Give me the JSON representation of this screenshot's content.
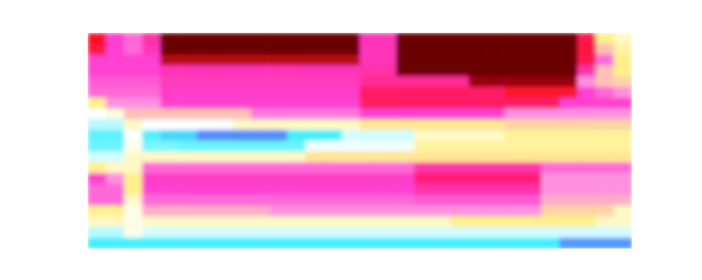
{
  "chart_data": {
    "type": "heatmap",
    "tick_labels": false,
    "xlim": [
      0,
      30
    ],
    "ylim": [
      0,
      20
    ],
    "zlim": [
      0,
      1
    ],
    "z": [
      [
        0.75,
        0.55,
        0.5,
        0.6,
        0.85,
        0.85,
        0.85,
        0.85,
        0.85,
        0.85,
        0.85,
        0.85,
        0.85,
        0.85,
        0.85,
        0.58,
        0.58,
        0.85,
        0.85,
        0.85,
        0.85,
        0.85,
        0.85,
        0.85,
        0.85,
        0.85,
        0.85,
        0.7,
        0.35,
        0.3
      ],
      [
        0.72,
        0.55,
        0.5,
        0.58,
        0.85,
        0.85,
        0.85,
        0.85,
        0.85,
        0.85,
        0.85,
        0.85,
        0.85,
        0.85,
        0.85,
        0.58,
        0.58,
        0.85,
        0.85,
        0.85,
        0.85,
        0.85,
        0.85,
        0.85,
        0.85,
        0.85,
        0.85,
        0.72,
        0.4,
        0.33
      ],
      [
        0.55,
        0.55,
        0.55,
        0.55,
        0.8,
        0.8,
        0.8,
        0.8,
        0.8,
        0.8,
        0.8,
        0.8,
        0.8,
        0.8,
        0.8,
        0.58,
        0.58,
        0.85,
        0.85,
        0.85,
        0.85,
        0.85,
        0.85,
        0.85,
        0.85,
        0.85,
        0.85,
        0.7,
        0.5,
        0.35
      ],
      [
        0.55,
        0.55,
        0.55,
        0.55,
        0.58,
        0.58,
        0.58,
        0.58,
        0.58,
        0.58,
        0.58,
        0.58,
        0.58,
        0.58,
        0.58,
        0.6,
        0.6,
        0.85,
        0.85,
        0.85,
        0.85,
        0.85,
        0.85,
        0.85,
        0.85,
        0.85,
        0.85,
        0.6,
        0.4,
        0.35
      ],
      [
        0.52,
        0.52,
        0.52,
        0.52,
        0.57,
        0.57,
        0.57,
        0.57,
        0.57,
        0.57,
        0.57,
        0.57,
        0.57,
        0.57,
        0.57,
        0.62,
        0.62,
        0.62,
        0.62,
        0.62,
        0.62,
        0.82,
        0.82,
        0.82,
        0.82,
        0.82,
        0.82,
        0.45,
        0.4,
        0.38
      ],
      [
        0.5,
        0.5,
        0.5,
        0.5,
        0.56,
        0.56,
        0.56,
        0.56,
        0.56,
        0.56,
        0.56,
        0.56,
        0.56,
        0.56,
        0.56,
        0.68,
        0.68,
        0.68,
        0.68,
        0.68,
        0.68,
        0.68,
        0.68,
        0.74,
        0.74,
        0.74,
        0.74,
        0.55,
        0.5,
        0.45
      ],
      [
        0.35,
        0.45,
        0.45,
        0.45,
        0.55,
        0.55,
        0.55,
        0.55,
        0.55,
        0.55,
        0.55,
        0.55,
        0.55,
        0.55,
        0.55,
        0.68,
        0.68,
        0.68,
        0.68,
        0.68,
        0.68,
        0.68,
        0.68,
        0.68,
        0.68,
        0.68,
        0.55,
        0.55,
        0.55,
        0.55
      ],
      [
        0.25,
        0.28,
        0.4,
        0.4,
        0.4,
        0.4,
        0.4,
        0.4,
        0.4,
        0.48,
        0.48,
        0.48,
        0.48,
        0.48,
        0.48,
        0.55,
        0.55,
        0.55,
        0.55,
        0.55,
        0.55,
        0.55,
        0.55,
        0.45,
        0.45,
        0.45,
        0.45,
        0.45,
        0.45,
        0.45
      ],
      [
        0.2,
        0.2,
        0.3,
        0.25,
        0.25,
        0.25,
        0.25,
        0.25,
        0.3,
        0.3,
        0.3,
        0.3,
        0.3,
        0.3,
        0.3,
        0.36,
        0.36,
        0.36,
        0.36,
        0.36,
        0.36,
        0.36,
        0.36,
        0.38,
        0.38,
        0.38,
        0.38,
        0.38,
        0.38,
        0.38
      ],
      [
        0.14,
        0.14,
        0.25,
        0.13,
        0.1,
        0.1,
        0.04,
        0.04,
        0.04,
        0.04,
        0.04,
        0.12,
        0.12,
        0.12,
        0.22,
        0.22,
        0.22,
        0.22,
        0.3,
        0.3,
        0.3,
        0.3,
        0.3,
        0.34,
        0.34,
        0.34,
        0.34,
        0.34,
        0.34,
        0.34
      ],
      [
        0.15,
        0.15,
        0.27,
        0.16,
        0.16,
        0.15,
        0.15,
        0.15,
        0.15,
        0.15,
        0.15,
        0.15,
        0.24,
        0.24,
        0.24,
        0.24,
        0.24,
        0.24,
        0.33,
        0.33,
        0.33,
        0.33,
        0.33,
        0.33,
        0.33,
        0.33,
        0.33,
        0.33,
        0.33,
        0.33
      ],
      [
        0.22,
        0.22,
        0.3,
        0.3,
        0.3,
        0.3,
        0.3,
        0.3,
        0.3,
        0.3,
        0.3,
        0.3,
        0.36,
        0.36,
        0.36,
        0.36,
        0.36,
        0.36,
        0.36,
        0.36,
        0.36,
        0.36,
        0.36,
        0.36,
        0.36,
        0.36,
        0.36,
        0.36,
        0.36,
        0.36
      ],
      [
        0.35,
        0.3,
        0.3,
        0.5,
        0.5,
        0.5,
        0.5,
        0.5,
        0.5,
        0.5,
        0.5,
        0.5,
        0.5,
        0.5,
        0.5,
        0.5,
        0.5,
        0.5,
        0.6,
        0.6,
        0.6,
        0.6,
        0.6,
        0.6,
        0.6,
        0.5,
        0.5,
        0.5,
        0.5,
        0.5
      ],
      [
        0.55,
        0.45,
        0.35,
        0.56,
        0.56,
        0.56,
        0.56,
        0.56,
        0.56,
        0.56,
        0.56,
        0.56,
        0.56,
        0.56,
        0.56,
        0.56,
        0.56,
        0.56,
        0.66,
        0.66,
        0.66,
        0.66,
        0.66,
        0.66,
        0.66,
        0.45,
        0.45,
        0.45,
        0.45,
        0.45
      ],
      [
        0.5,
        0.5,
        0.35,
        0.55,
        0.55,
        0.55,
        0.55,
        0.55,
        0.55,
        0.55,
        0.55,
        0.55,
        0.55,
        0.55,
        0.55,
        0.55,
        0.55,
        0.55,
        0.6,
        0.6,
        0.6,
        0.6,
        0.6,
        0.6,
        0.6,
        0.45,
        0.45,
        0.45,
        0.45,
        0.45
      ],
      [
        0.5,
        0.5,
        0.3,
        0.5,
        0.5,
        0.5,
        0.5,
        0.5,
        0.5,
        0.5,
        0.5,
        0.5,
        0.5,
        0.5,
        0.5,
        0.5,
        0.5,
        0.5,
        0.52,
        0.52,
        0.52,
        0.52,
        0.52,
        0.52,
        0.52,
        0.42,
        0.42,
        0.42,
        0.42,
        0.42
      ],
      [
        0.35,
        0.35,
        0.27,
        0.42,
        0.42,
        0.42,
        0.42,
        0.42,
        0.42,
        0.42,
        0.45,
        0.45,
        0.45,
        0.45,
        0.45,
        0.45,
        0.45,
        0.45,
        0.45,
        0.45,
        0.45,
        0.45,
        0.45,
        0.45,
        0.45,
        0.38,
        0.38,
        0.38,
        0.38,
        0.3
      ],
      [
        0.3,
        0.3,
        0.27,
        0.3,
        0.3,
        0.3,
        0.3,
        0.3,
        0.3,
        0.3,
        0.3,
        0.3,
        0.3,
        0.3,
        0.3,
        0.3,
        0.3,
        0.3,
        0.3,
        0.3,
        0.35,
        0.35,
        0.35,
        0.35,
        0.35,
        0.35,
        0.35,
        0.35,
        0.3,
        0.3
      ],
      [
        0.2,
        0.2,
        0.27,
        0.22,
        0.22,
        0.22,
        0.22,
        0.22,
        0.22,
        0.22,
        0.22,
        0.22,
        0.22,
        0.22,
        0.22,
        0.22,
        0.22,
        0.22,
        0.22,
        0.22,
        0.22,
        0.22,
        0.22,
        0.22,
        0.22,
        0.22,
        0.22,
        0.22,
        0.22,
        0.22
      ],
      [
        0.12,
        0.12,
        0.12,
        0.12,
        0.12,
        0.12,
        0.12,
        0.12,
        0.12,
        0.12,
        0.12,
        0.12,
        0.12,
        0.12,
        0.12,
        0.12,
        0.12,
        0.12,
        0.12,
        0.12,
        0.12,
        0.12,
        0.12,
        0.12,
        0.12,
        0.12,
        0.05,
        0.05,
        0.05,
        0.05
      ]
    ]
  }
}
